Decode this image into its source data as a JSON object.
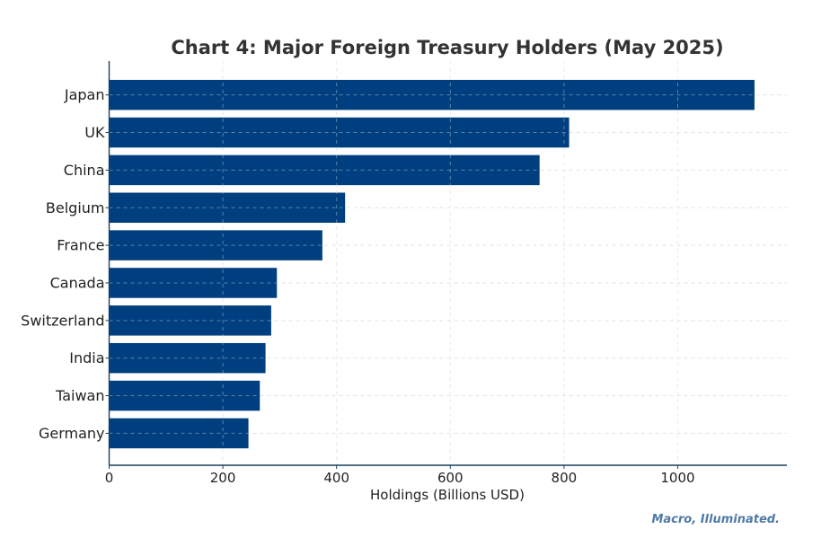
{
  "chart_data": {
    "type": "bar",
    "orientation": "horizontal",
    "title": "Chart 4: Major Foreign Treasury Holders (May 2025)",
    "xlabel": "Holdings (Billions USD)",
    "ylabel": "",
    "categories": [
      "Japan",
      "UK",
      "China",
      "Belgium",
      "France",
      "Canada",
      "Switzerland",
      "India",
      "Taiwan",
      "Germany"
    ],
    "values": [
      1135,
      809,
      757,
      415,
      375,
      295,
      285,
      275,
      265,
      245
    ],
    "xlim": [
      0,
      1192
    ],
    "xticks": [
      0,
      200,
      400,
      600,
      800,
      1000
    ],
    "grid": true,
    "bar_color": "#003f7f",
    "watermark": "Macro, Illuminated."
  }
}
